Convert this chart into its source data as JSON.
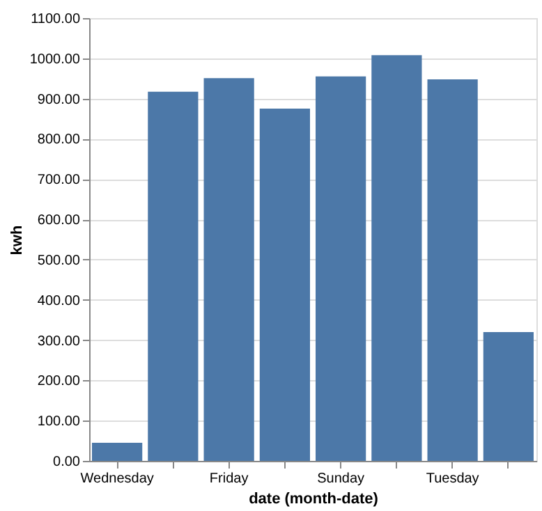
{
  "chart_data": {
    "type": "bar",
    "xlabel": "date (month-date)",
    "ylabel": "kwh",
    "categories": [
      "Wednesday",
      null,
      "Friday",
      null,
      "Sunday",
      null,
      "Tuesday",
      null
    ],
    "values": [
      45,
      917,
      951,
      875,
      955,
      1008,
      948,
      320
    ],
    "color": "#4c78a8",
    "ylim": [
      0,
      1100
    ],
    "yticks": [
      {
        "value": 0,
        "label": "0.00"
      },
      {
        "value": 100,
        "label": "100.00"
      },
      {
        "value": 200,
        "label": "200.00"
      },
      {
        "value": 300,
        "label": "300.00"
      },
      {
        "value": 400,
        "label": "400.00"
      },
      {
        "value": 500,
        "label": "500.00"
      },
      {
        "value": 600,
        "label": "600.00"
      },
      {
        "value": 700,
        "label": "700.00"
      },
      {
        "value": 800,
        "label": "800.00"
      },
      {
        "value": 900,
        "label": "900.00"
      },
      {
        "value": 1000,
        "label": "1000.00"
      },
      {
        "value": 1100,
        "label": "1100.00"
      }
    ],
    "grid": "y"
  }
}
